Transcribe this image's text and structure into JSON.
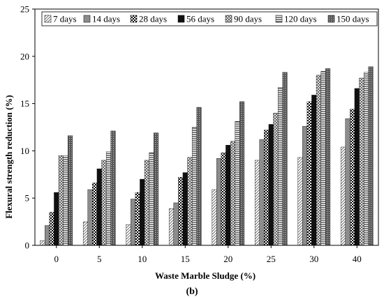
{
  "chart_data": {
    "type": "bar",
    "title": "",
    "xlabel": "Waste Marble Sludge (%)",
    "ylabel": "Flexural strength reduction (%)",
    "caption": "(b)",
    "ylim": [
      0,
      25
    ],
    "yticks": [
      "0",
      "5",
      "10",
      "15",
      "20",
      "25"
    ],
    "grid": false,
    "legend_position": "top",
    "categories": [
      "0",
      "5",
      "10",
      "15",
      "20",
      "25",
      "30",
      "40"
    ],
    "series": [
      {
        "name": "7 days",
        "pattern": "diag-light",
        "values": [
          0.5,
          2.5,
          2.2,
          3.9,
          5.9,
          9.0,
          9.3,
          10.4
        ]
      },
      {
        "name": "14 days",
        "pattern": "gray",
        "values": [
          2.1,
          5.9,
          4.9,
          4.5,
          9.2,
          11.2,
          12.6,
          13.4
        ]
      },
      {
        "name": "28 days",
        "pattern": "checker",
        "values": [
          3.5,
          6.6,
          5.6,
          7.2,
          9.8,
          12.2,
          15.2,
          14.4
        ]
      },
      {
        "name": "56 days",
        "pattern": "black",
        "values": [
          5.6,
          8.1,
          7.0,
          7.7,
          10.6,
          12.8,
          15.9,
          16.6
        ]
      },
      {
        "name": "90 days",
        "pattern": "crosshatch",
        "values": [
          9.5,
          9.0,
          9.0,
          9.3,
          11.0,
          14.0,
          18.0,
          17.7
        ]
      },
      {
        "name": "120 days",
        "pattern": "hlines",
        "values": [
          9.5,
          9.9,
          9.8,
          12.5,
          13.1,
          16.7,
          18.4,
          18.3
        ]
      },
      {
        "name": "150 days",
        "pattern": "dense",
        "values": [
          11.6,
          12.1,
          11.9,
          14.6,
          15.2,
          18.3,
          18.7,
          18.9
        ]
      }
    ]
  }
}
